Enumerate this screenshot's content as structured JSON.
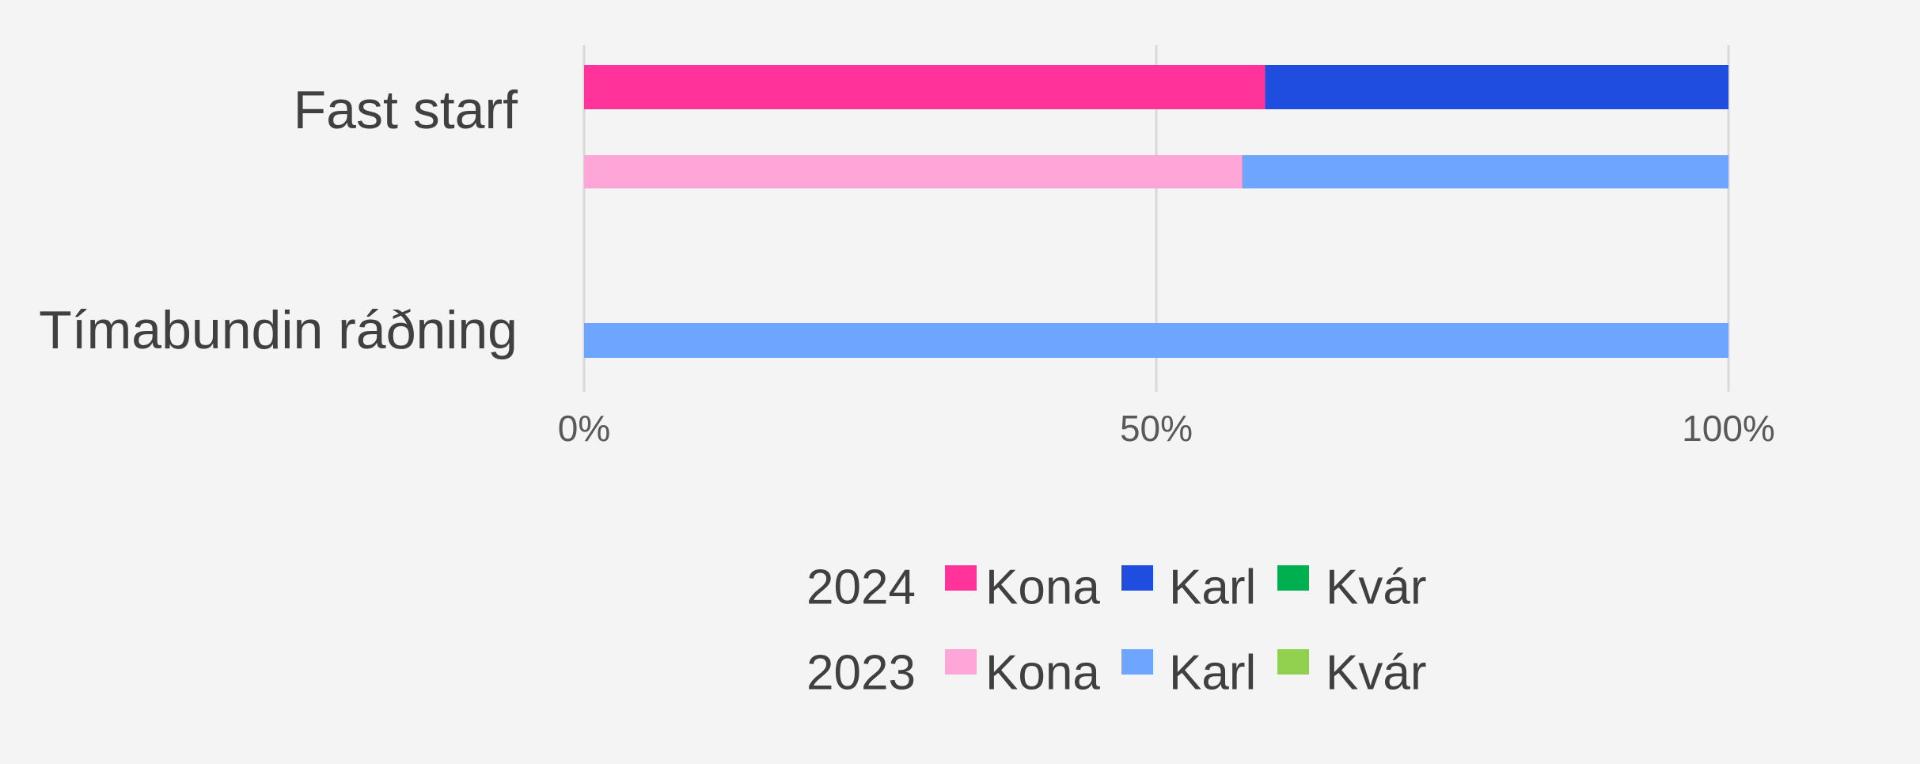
{
  "chart_data": {
    "type": "stacked-bar-horizontal",
    "categories": [
      "Fast starf",
      "Tímabundin ráðning"
    ],
    "groups": [
      {
        "label": "2024",
        "series": [
          {
            "name": "Kona",
            "color": "#ff3399",
            "values": [
              59.5,
              null
            ]
          },
          {
            "name": "Karl",
            "color": "#1f4de0",
            "values": [
              40.5,
              null
            ]
          },
          {
            "name": "Kvár",
            "color": "#00b050",
            "values": [
              0,
              null
            ]
          }
        ]
      },
      {
        "label": "2023",
        "series": [
          {
            "name": "Kona",
            "color": "#ffa6d9",
            "values": [
              57.5,
              0
            ]
          },
          {
            "name": "Karl",
            "color": "#6ea6ff",
            "values": [
              42.5,
              100
            ]
          },
          {
            "name": "Kvár",
            "color": "#92d050",
            "values": [
              0,
              0
            ]
          }
        ]
      }
    ],
    "xlim": [
      0,
      100
    ],
    "xticks": [
      {
        "value": 0,
        "label": "0%"
      },
      {
        "value": 50,
        "label": "50%"
      },
      {
        "value": 100,
        "label": "100%"
      }
    ],
    "grid": true
  }
}
